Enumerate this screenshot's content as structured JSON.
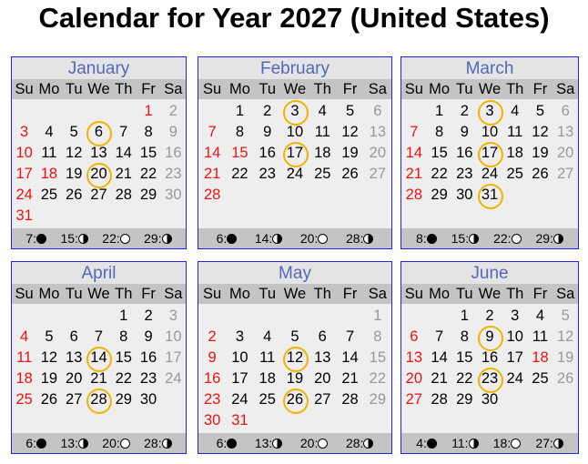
{
  "title": "Calendar for Year 2027 (United States)",
  "weekdays": [
    "Su",
    "Mo",
    "Tu",
    "We",
    "Th",
    "Fr",
    "Sa"
  ],
  "colors": {
    "sunday_holiday": "#ee1111",
    "saturday": "#999999",
    "circle": "#f0b400",
    "border": "#2222dd",
    "month_name": "#5566bb"
  },
  "months": [
    {
      "name": "January",
      "start": 5,
      "days": 31,
      "holidays": [
        1,
        18
      ],
      "circled": [
        6,
        20
      ],
      "moons": [
        {
          "day": "7:",
          "phase": "new"
        },
        {
          "day": "15:",
          "phase": "first-quarter"
        },
        {
          "day": "22:",
          "phase": "full"
        },
        {
          "day": "29:",
          "phase": "last-quarter"
        }
      ]
    },
    {
      "name": "February",
      "start": 1,
      "days": 28,
      "holidays": [
        15
      ],
      "circled": [
        3,
        17
      ],
      "moons": [
        {
          "day": "6:",
          "phase": "new"
        },
        {
          "day": "14:",
          "phase": "first-quarter"
        },
        {
          "day": "20:",
          "phase": "full"
        },
        {
          "day": "28:",
          "phase": "last-quarter"
        }
      ]
    },
    {
      "name": "March",
      "start": 1,
      "days": 31,
      "holidays": [],
      "circled": [
        3,
        17,
        31
      ],
      "moons": [
        {
          "day": "8:",
          "phase": "new"
        },
        {
          "day": "15:",
          "phase": "first-quarter"
        },
        {
          "day": "22:",
          "phase": "full"
        },
        {
          "day": "29:",
          "phase": "last-quarter"
        }
      ]
    },
    {
      "name": "April",
      "start": 4,
      "days": 30,
      "holidays": [],
      "circled": [
        14,
        28
      ],
      "moons": [
        {
          "day": "6:",
          "phase": "new"
        },
        {
          "day": "13:",
          "phase": "first-quarter"
        },
        {
          "day": "20:",
          "phase": "full"
        },
        {
          "day": "28:",
          "phase": "last-quarter"
        }
      ]
    },
    {
      "name": "May",
      "start": 6,
      "days": 31,
      "holidays": [
        31
      ],
      "circled": [
        12,
        26
      ],
      "moons": [
        {
          "day": "6:",
          "phase": "new"
        },
        {
          "day": "13:",
          "phase": "first-quarter"
        },
        {
          "day": "20:",
          "phase": "full"
        },
        {
          "day": "28:",
          "phase": "last-quarter"
        }
      ]
    },
    {
      "name": "June",
      "start": 2,
      "days": 30,
      "holidays": [
        18
      ],
      "circled": [
        9,
        23
      ],
      "moons": [
        {
          "day": "4:",
          "phase": "new"
        },
        {
          "day": "11:",
          "phase": "first-quarter"
        },
        {
          "day": "18:",
          "phase": "full"
        },
        {
          "day": "27:",
          "phase": "last-quarter"
        }
      ]
    }
  ]
}
